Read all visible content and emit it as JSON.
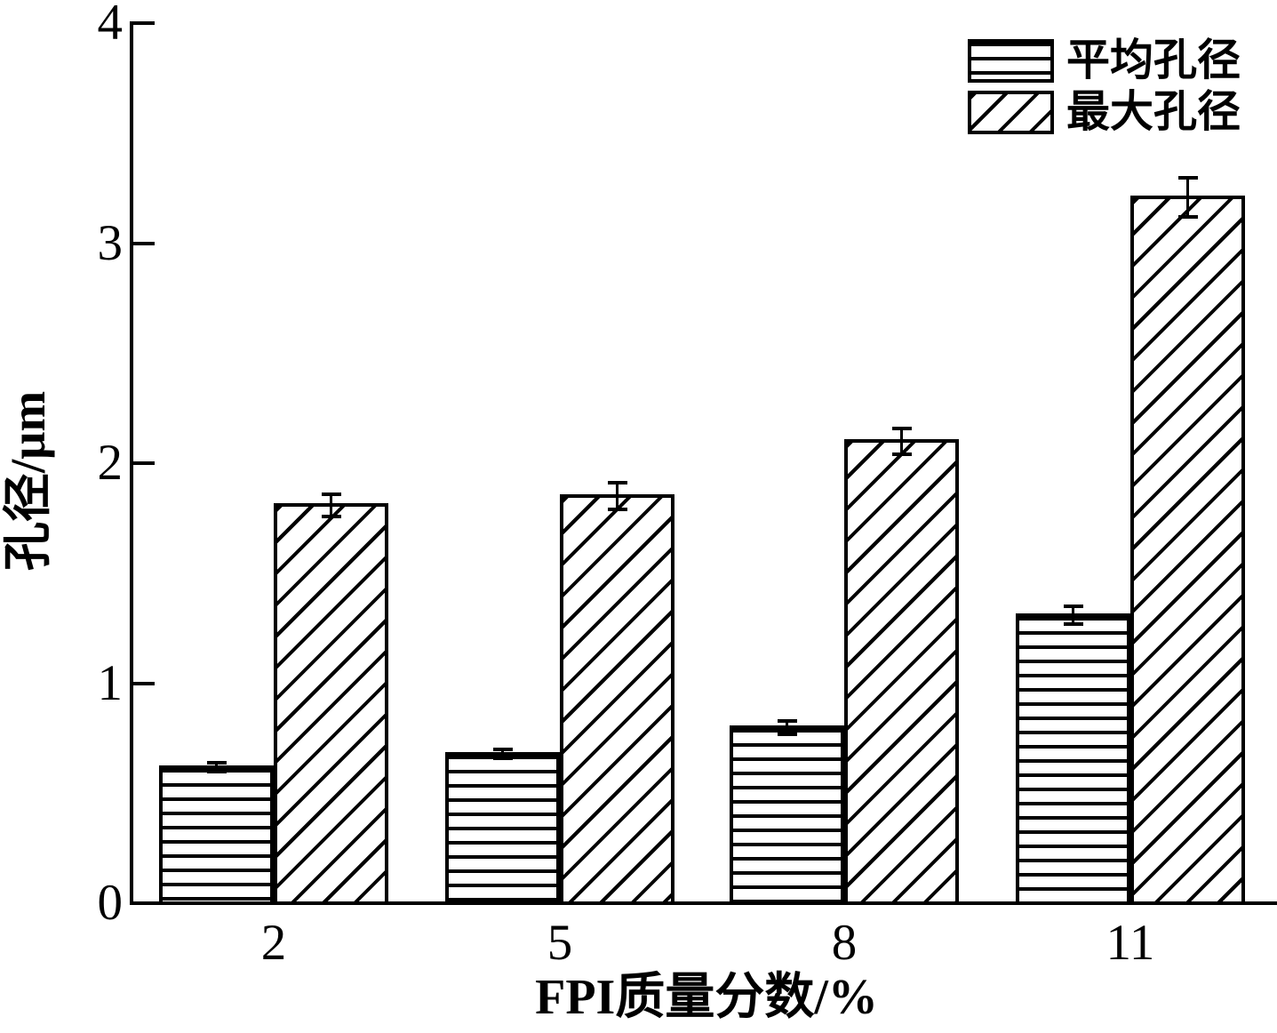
{
  "chart_data": {
    "type": "bar",
    "title": "",
    "categories": [
      "2",
      "5",
      "8",
      "11"
    ],
    "series": [
      {
        "name": "平均孔径",
        "hatch": "horizontal",
        "values": [
          0.62,
          0.68,
          0.8,
          1.31
        ],
        "errors": [
          0.02,
          0.02,
          0.03,
          0.04
        ]
      },
      {
        "name": "最大孔径",
        "hatch": "diagonal",
        "values": [
          1.81,
          1.85,
          2.1,
          3.21
        ],
        "errors": [
          0.05,
          0.06,
          0.06,
          0.09
        ]
      }
    ],
    "xlabel": "FPI质量分数/%",
    "ylabel": "孔径/μm",
    "ylim": [
      0,
      4
    ],
    "yticks": [
      0,
      1,
      2,
      3,
      4
    ],
    "grid": false,
    "legend_position": "top-right",
    "colors": {
      "foreground": "#000000",
      "background": "#ffffff"
    }
  }
}
